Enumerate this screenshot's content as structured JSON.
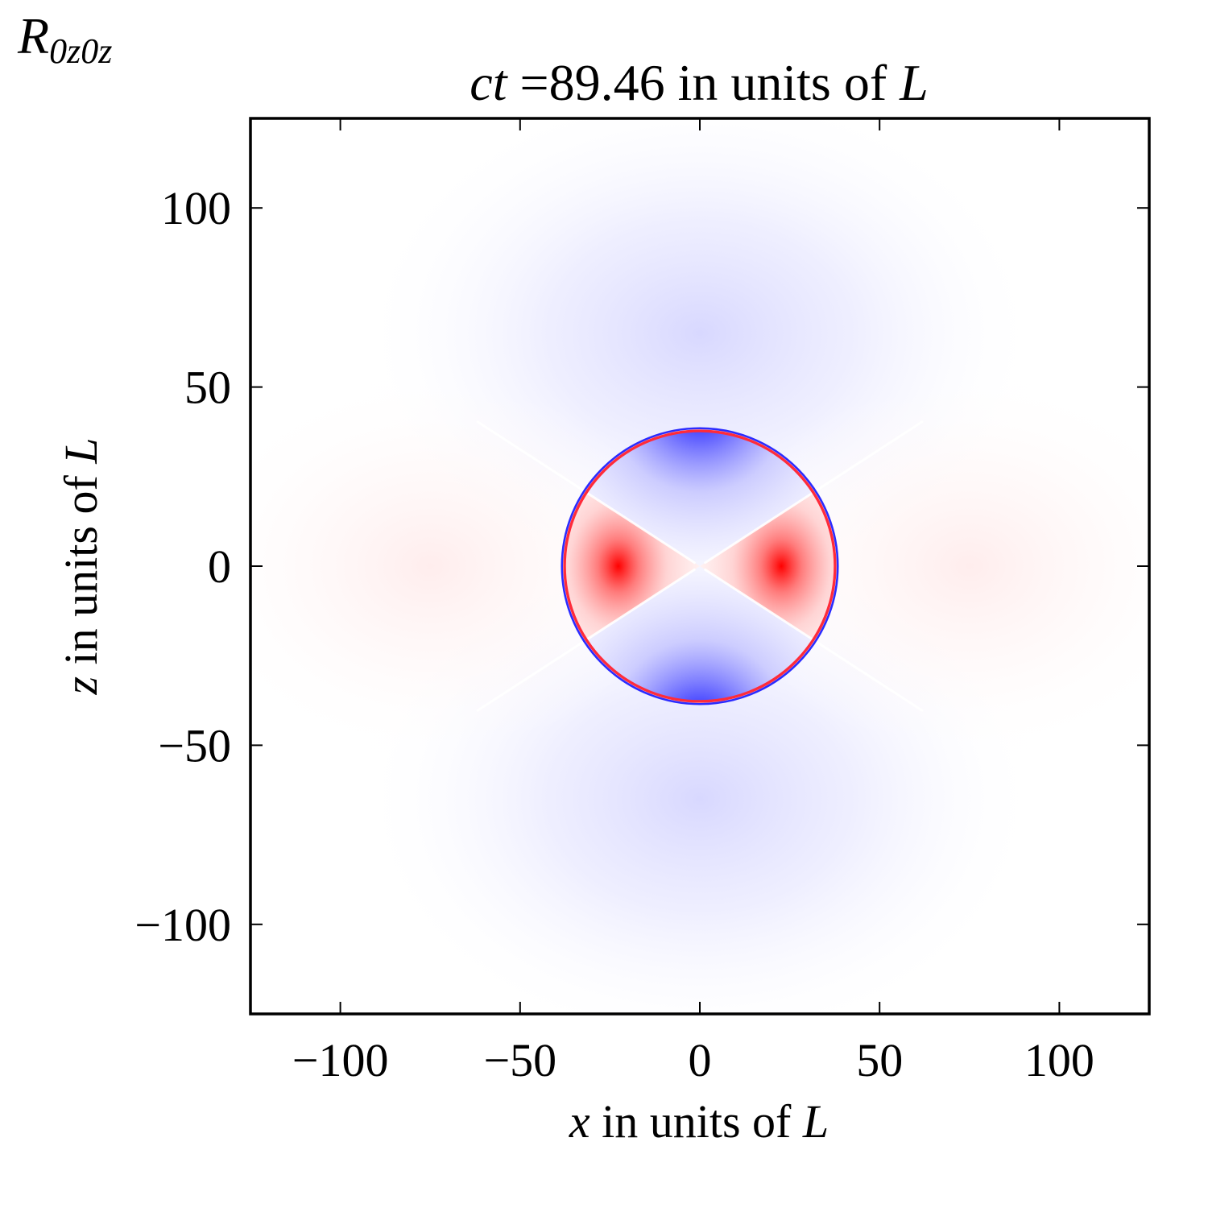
{
  "chart_data": {
    "type": "heatmap",
    "quantity": {
      "symbol": "R",
      "subscript": "0z0z"
    },
    "title": {
      "prefix": "ct",
      "text": " =89.46 in units of ",
      "unit": "L"
    },
    "xlabel": {
      "var": "x",
      "text": " in units of ",
      "unit": "L"
    },
    "ylabel": {
      "var": "z",
      "text": " in units of ",
      "unit": "L"
    },
    "xlim": [
      -125,
      125
    ],
    "ylim": [
      -125,
      125
    ],
    "xticks": [
      -100,
      -50,
      0,
      50,
      100
    ],
    "yticks": [
      -100,
      -50,
      0,
      50,
      100
    ],
    "xtick_labels": [
      "−100",
      "−50",
      "0",
      "50",
      "100"
    ],
    "ytick_labels": [
      "−100",
      "−50",
      "0",
      "50",
      "100"
    ],
    "wavefront_radius": 37.8,
    "grid": false,
    "colormap": {
      "negative": "#0000ff",
      "zero": "#ffffff",
      "positive": "#ff0000"
    }
  }
}
